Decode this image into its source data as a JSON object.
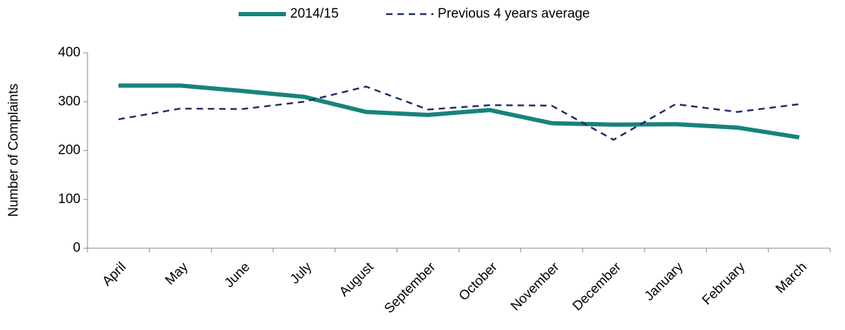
{
  "chart_data": {
    "type": "line",
    "y_label": "Number  of Complaints",
    "categories": [
      "April",
      "May",
      "June",
      "July",
      "August",
      "September",
      "October",
      "November",
      "December",
      "January",
      "February",
      "March"
    ],
    "series": [
      {
        "name": "2014/15",
        "color": "#17837a",
        "style": "solid",
        "values": [
          333,
          333,
          322,
          310,
          279,
          273,
          283,
          256,
          253,
          254,
          247,
          227
        ]
      },
      {
        "name": "Previous 4 years average",
        "color": "#1f2d6b",
        "style": "dashed",
        "values": [
          264,
          286,
          285,
          300,
          331,
          284,
          293,
          292,
          222,
          295,
          279,
          295
        ]
      }
    ],
    "ylim": [
      0,
      400
    ],
    "yticks": [
      0,
      100,
      200,
      300,
      400
    ],
    "grid": false,
    "legend": "top"
  }
}
